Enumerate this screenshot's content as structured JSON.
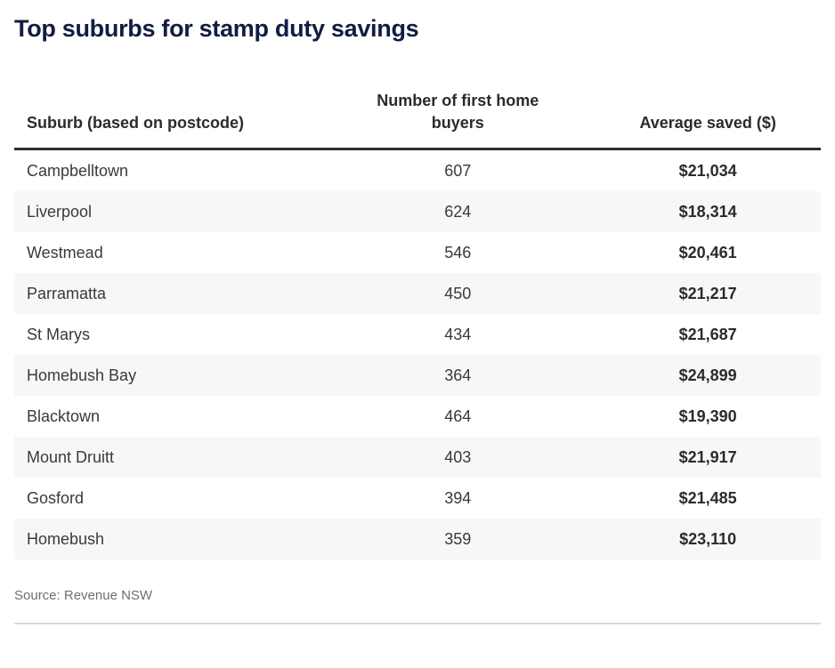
{
  "chart_data": {
    "type": "table",
    "title": "Top suburbs for stamp duty savings",
    "columns": [
      "Suburb (based on postcode)",
      "Number of first home buyers",
      "Average saved ($)"
    ],
    "rows": [
      {
        "suburb": "Campbelltown",
        "first_home_buyers": 607,
        "average_saved": "$21,034"
      },
      {
        "suburb": "Liverpool",
        "first_home_buyers": 624,
        "average_saved": "$18,314"
      },
      {
        "suburb": "Westmead",
        "first_home_buyers": 546,
        "average_saved": "$20,461"
      },
      {
        "suburb": "Parramatta",
        "first_home_buyers": 450,
        "average_saved": "$21,217"
      },
      {
        "suburb": "St Marys",
        "first_home_buyers": 434,
        "average_saved": "$21,687"
      },
      {
        "suburb": "Homebush Bay",
        "first_home_buyers": 364,
        "average_saved": "$24,899"
      },
      {
        "suburb": "Blacktown",
        "first_home_buyers": 464,
        "average_saved": "$19,390"
      },
      {
        "suburb": "Mount Druitt",
        "first_home_buyers": 403,
        "average_saved": "$21,917"
      },
      {
        "suburb": "Gosford",
        "first_home_buyers": 394,
        "average_saved": "$21,485"
      },
      {
        "suburb": "Homebush",
        "first_home_buyers": 359,
        "average_saved": "$23,110"
      }
    ],
    "source": "Source: Revenue NSW",
    "layout_hints": {
      "zebra_striping": true,
      "column_alignments": [
        "left",
        "center",
        "center"
      ]
    }
  },
  "colors": {
    "title_navy": "#131c41",
    "header_rule": "#2e2e2e",
    "header_text": "#2b2b2b",
    "body_text": "#3a3a3a",
    "bold_value_text": "#2b2b2b",
    "row_alternate": "#f7f7f7",
    "source_text": "#6e6e6e",
    "bottom_divider": "#d9d9d9",
    "background": "#ffffff"
  }
}
